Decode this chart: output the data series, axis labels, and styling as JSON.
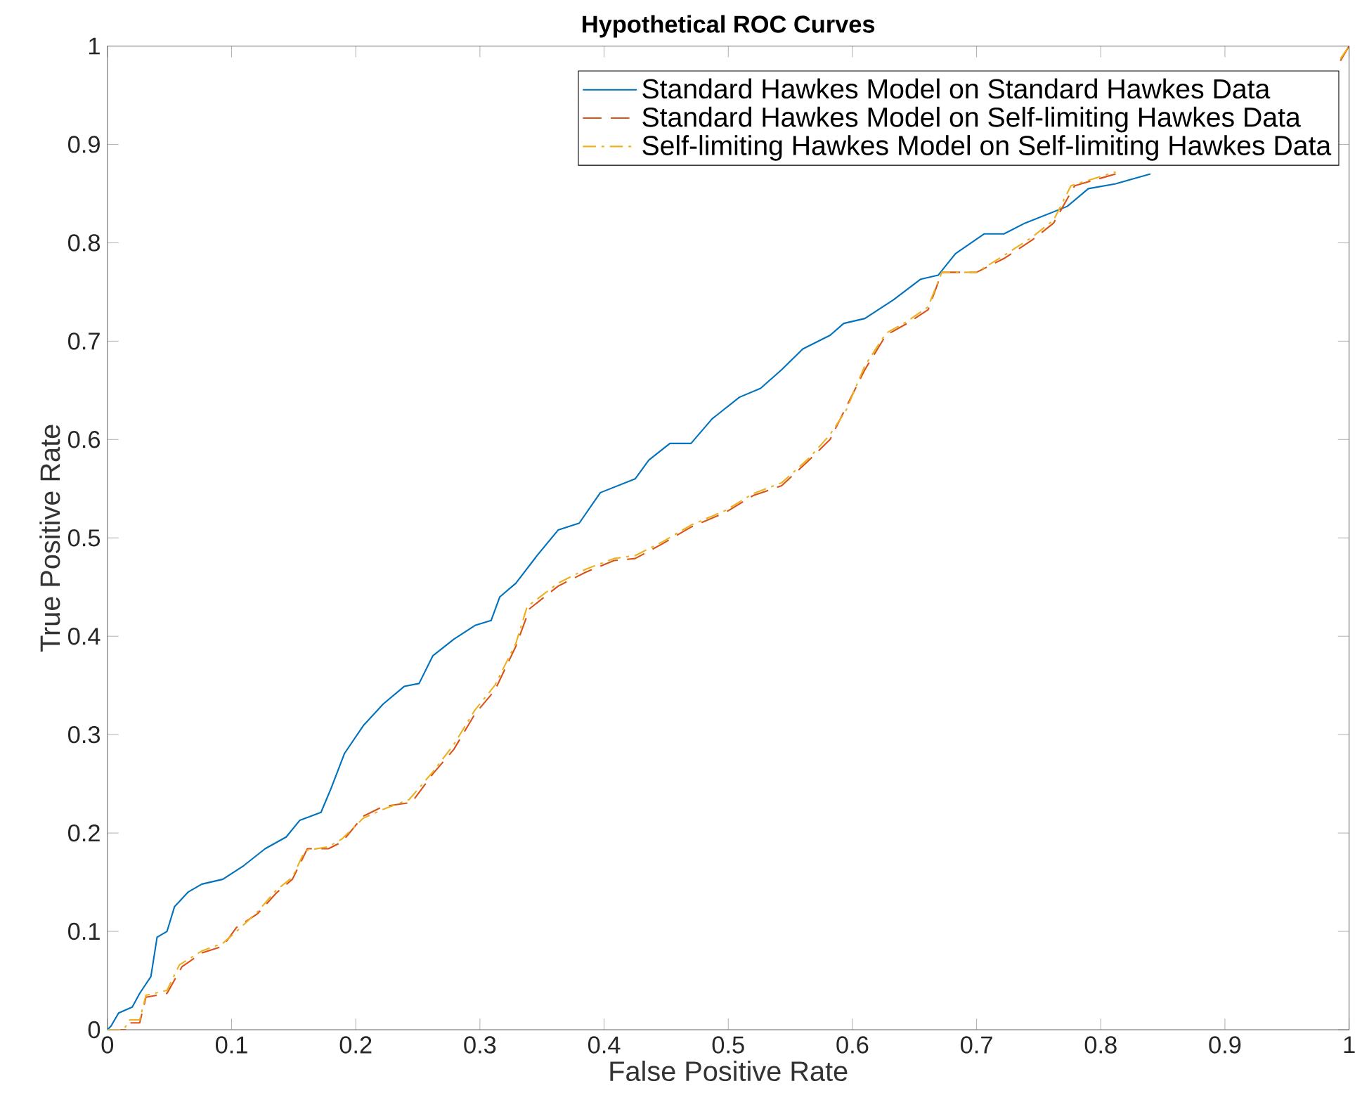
{
  "chart_data": {
    "type": "line",
    "title": "Hypothetical ROC Curves",
    "xlabel": "False Positive Rate",
    "ylabel": "True Positive Rate",
    "xlim": [
      0,
      1
    ],
    "ylim": [
      0,
      1
    ],
    "xticks": [
      0,
      0.1,
      0.2,
      0.3,
      0.4,
      0.5,
      0.6,
      0.7,
      0.8,
      0.9,
      1
    ],
    "yticks": [
      0,
      0.1,
      0.2,
      0.3,
      0.4,
      0.5,
      0.6,
      0.7,
      0.8,
      0.9,
      1
    ],
    "grid": false,
    "legend": "top right",
    "series": [
      {
        "name": "Standard Hawkes Model on Standard Hawkes Data",
        "color": "#0072bd",
        "line_style": "solid",
        "x": [
          0,
          0.003,
          0.009,
          0.02,
          0.026,
          0.035,
          0.04,
          0.048,
          0.054,
          0.065,
          0.076,
          0.093,
          0.11,
          0.127,
          0.144,
          0.155,
          0.172,
          0.18,
          0.191,
          0.206,
          0.222,
          0.239,
          0.251,
          0.262,
          0.279,
          0.296,
          0.309,
          0.316,
          0.329,
          0.346,
          0.363,
          0.38,
          0.397,
          0.425,
          0.436,
          0.453,
          0.47,
          0.487,
          0.509,
          0.526,
          0.543,
          0.56,
          0.582,
          0.593,
          0.61,
          0.633,
          0.655,
          0.669,
          0.683,
          0.706,
          0.722,
          0.739,
          0.773,
          0.79,
          0.812,
          0.84
        ],
        "values": [
          0,
          0.004,
          0.017,
          0.023,
          0.037,
          0.054,
          0.094,
          0.1,
          0.125,
          0.14,
          0.148,
          0.153,
          0.167,
          0.184,
          0.196,
          0.213,
          0.221,
          0.245,
          0.281,
          0.309,
          0.331,
          0.349,
          0.352,
          0.38,
          0.397,
          0.411,
          0.416,
          0.44,
          0.454,
          0.482,
          0.508,
          0.515,
          0.546,
          0.56,
          0.579,
          0.596,
          0.596,
          0.621,
          0.643,
          0.652,
          0.671,
          0.692,
          0.706,
          0.718,
          0.723,
          0.742,
          0.763,
          0.767,
          0.789,
          0.809,
          0.809,
          0.82,
          0.837,
          0.855,
          0.86,
          0.87
        ]
      },
      {
        "name": "Standard Hawkes Model on Self-limiting Hawkes Data",
        "color": "#d95319",
        "line_style": "dashed",
        "x": [
          0,
          0.015,
          0.017,
          0.026,
          0.031,
          0.048,
          0.06,
          0.076,
          0.093,
          0.104,
          0.121,
          0.136,
          0.149,
          0.161,
          0.178,
          0.189,
          0.206,
          0.222,
          0.245,
          0.262,
          0.279,
          0.296,
          0.312,
          0.329,
          0.34,
          0.363,
          0.385,
          0.408,
          0.425,
          0.447,
          0.47,
          0.498,
          0.52,
          0.543,
          0.565,
          0.582,
          0.593,
          0.61,
          0.627,
          0.644,
          0.661,
          0.672,
          0.7,
          0.722,
          0.745,
          0.762,
          0.779,
          0.812,
          0.846,
          0.891,
          0.925,
          0.97,
          0.993,
          1
        ],
        "values": [
          0,
          0,
          0.007,
          0.007,
          0.033,
          0.037,
          0.064,
          0.078,
          0.085,
          0.104,
          0.118,
          0.139,
          0.153,
          0.184,
          0.184,
          0.191,
          0.217,
          0.227,
          0.231,
          0.26,
          0.285,
          0.321,
          0.345,
          0.39,
          0.428,
          0.451,
          0.465,
          0.477,
          0.479,
          0.494,
          0.511,
          0.526,
          0.543,
          0.553,
          0.579,
          0.6,
          0.628,
          0.671,
          0.706,
          0.718,
          0.732,
          0.77,
          0.77,
          0.784,
          0.803,
          0.82,
          0.858,
          0.87,
          null,
          null,
          null,
          null,
          0.985,
          1
        ]
      },
      {
        "name": "Self-limiting Hawkes Model on Self-limiting Hawkes Data",
        "color": "#edb120",
        "line_style": "dashdot",
        "x": [
          0,
          0.013,
          0.018,
          0.026,
          0.031,
          0.048,
          0.058,
          0.076,
          0.093,
          0.104,
          0.121,
          0.136,
          0.149,
          0.159,
          0.178,
          0.189,
          0.206,
          0.222,
          0.243,
          0.262,
          0.279,
          0.296,
          0.312,
          0.329,
          0.338,
          0.363,
          0.385,
          0.408,
          0.425,
          0.447,
          0.47,
          0.498,
          0.52,
          0.543,
          0.565,
          0.582,
          0.595,
          0.61,
          0.627,
          0.644,
          0.661,
          0.672,
          0.7,
          0.722,
          0.745,
          0.762,
          0.776,
          0.812,
          0.846,
          0.891,
          0.925,
          0.97,
          0.993,
          1
        ],
        "values": [
          0,
          0,
          0.01,
          0.01,
          0.035,
          0.04,
          0.066,
          0.08,
          0.088,
          0.1,
          0.12,
          0.142,
          0.155,
          0.182,
          0.186,
          0.194,
          0.215,
          0.224,
          0.234,
          0.262,
          0.29,
          0.325,
          0.35,
          0.393,
          0.43,
          0.454,
          0.468,
          0.479,
          0.482,
          0.496,
          0.513,
          0.528,
          0.545,
          0.556,
          0.581,
          0.605,
          0.63,
          0.675,
          0.708,
          0.72,
          0.735,
          0.77,
          0.77,
          0.787,
          0.806,
          0.823,
          0.858,
          0.872,
          null,
          null,
          null,
          null,
          0.987,
          1
        ]
      }
    ]
  }
}
